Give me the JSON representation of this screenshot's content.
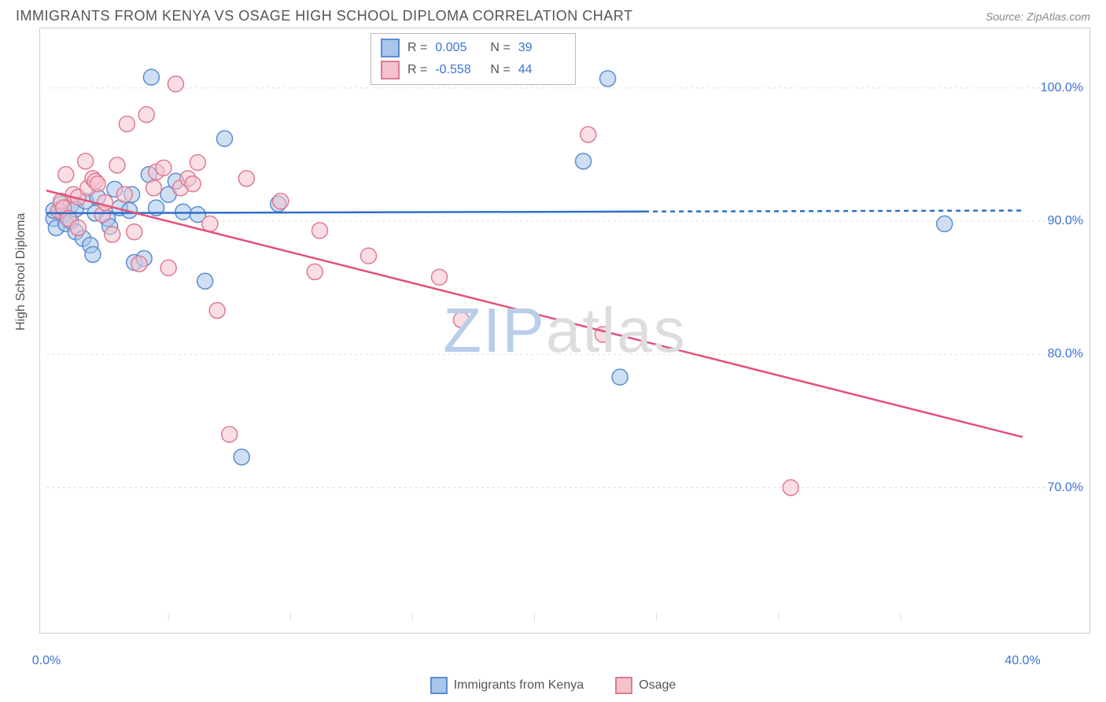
{
  "title": "IMMIGRANTS FROM KENYA VS OSAGE HIGH SCHOOL DIPLOMA CORRELATION CHART",
  "source": "Source: ZipAtlas.com",
  "y_axis_label": "High School Diploma",
  "watermark_bold": "ZIP",
  "watermark_light": "atlas",
  "chart": {
    "type": "scatter",
    "xlim": [
      0,
      40
    ],
    "ylim": [
      60,
      104
    ],
    "x_ticks": [
      0,
      40
    ],
    "x_tick_labels": [
      "0.0%",
      "40.0%"
    ],
    "y_ticks": [
      70,
      80,
      90,
      100
    ],
    "y_tick_labels": [
      "70.0%",
      "80.0%",
      "90.0%",
      "100.0%"
    ],
    "x_minor_ticks": [
      5,
      10,
      15,
      20,
      25,
      30,
      35
    ],
    "background_color": "#ffffff",
    "grid_color": "#dddddd",
    "border_color": "#cccccc",
    "marker_radius": 10,
    "marker_opacity": 0.55,
    "line_width": 2.5,
    "dash_pattern": "6 5"
  },
  "series": [
    {
      "name": "Immigrants from Kenya",
      "fill_color": "#a8c5ea",
      "stroke_color": "#5a8dd0",
      "line_color": "#2f6fc7",
      "regression": {
        "x1": 0,
        "y1": 90.6,
        "x2": 40,
        "y2": 90.8,
        "solid_until_x": 24.5
      },
      "stats_r": "0.005",
      "stats_n": "39",
      "points": [
        [
          0.3,
          90.2
        ],
        [
          0.3,
          90.8
        ],
        [
          0.4,
          89.5
        ],
        [
          0.6,
          91.3
        ],
        [
          0.7,
          90.5
        ],
        [
          0.8,
          89.8
        ],
        [
          1.0,
          91.2
        ],
        [
          1.0,
          90.0
        ],
        [
          1.2,
          89.2
        ],
        [
          1.2,
          90.9
        ],
        [
          1.5,
          88.7
        ],
        [
          1.6,
          91.5
        ],
        [
          1.8,
          88.2
        ],
        [
          1.9,
          87.5
        ],
        [
          2.0,
          90.6
        ],
        [
          2.1,
          91.8
        ],
        [
          2.5,
          90.2
        ],
        [
          2.6,
          89.6
        ],
        [
          2.8,
          92.4
        ],
        [
          3.0,
          91.0
        ],
        [
          3.4,
          90.8
        ],
        [
          3.5,
          92.0
        ],
        [
          3.6,
          86.9
        ],
        [
          4.0,
          87.2
        ],
        [
          4.2,
          93.5
        ],
        [
          4.3,
          100.8
        ],
        [
          4.5,
          91.0
        ],
        [
          5.0,
          92.0
        ],
        [
          5.3,
          93.0
        ],
        [
          5.6,
          90.7
        ],
        [
          6.2,
          90.5
        ],
        [
          6.5,
          85.5
        ],
        [
          7.3,
          96.2
        ],
        [
          8.0,
          72.3
        ],
        [
          9.5,
          91.3
        ],
        [
          23.0,
          100.7
        ],
        [
          23.5,
          78.3
        ],
        [
          22.0,
          94.5
        ],
        [
          36.8,
          89.8
        ]
      ]
    },
    {
      "name": "Osage",
      "fill_color": "#f4c2cd",
      "stroke_color": "#e07a92",
      "line_color": "#e35177",
      "regression": {
        "x1": 0,
        "y1": 92.3,
        "x2": 40,
        "y2": 73.8,
        "solid_until_x": 40
      },
      "stats_r": "-0.558",
      "stats_n": "44",
      "points": [
        [
          0.5,
          90.8
        ],
        [
          0.6,
          91.5
        ],
        [
          0.7,
          91.0
        ],
        [
          0.8,
          93.5
        ],
        [
          0.9,
          90.2
        ],
        [
          1.1,
          92.0
        ],
        [
          1.3,
          91.8
        ],
        [
          1.3,
          89.5
        ],
        [
          1.6,
          94.5
        ],
        [
          1.7,
          92.5
        ],
        [
          1.9,
          93.2
        ],
        [
          2.0,
          93.0
        ],
        [
          2.1,
          92.8
        ],
        [
          2.3,
          90.5
        ],
        [
          2.4,
          91.4
        ],
        [
          2.7,
          89.0
        ],
        [
          2.9,
          94.2
        ],
        [
          3.2,
          92.0
        ],
        [
          3.3,
          97.3
        ],
        [
          3.6,
          89.2
        ],
        [
          3.8,
          86.8
        ],
        [
          4.1,
          98.0
        ],
        [
          4.4,
          92.5
        ],
        [
          4.5,
          93.7
        ],
        [
          4.8,
          94.0
        ],
        [
          5.0,
          86.5
        ],
        [
          5.3,
          100.3
        ],
        [
          5.5,
          92.5
        ],
        [
          5.8,
          93.2
        ],
        [
          6.0,
          92.8
        ],
        [
          6.2,
          94.4
        ],
        [
          6.7,
          89.8
        ],
        [
          7.0,
          83.3
        ],
        [
          7.5,
          74.0
        ],
        [
          8.2,
          93.2
        ],
        [
          9.6,
          91.5
        ],
        [
          11.0,
          86.2
        ],
        [
          11.2,
          89.3
        ],
        [
          13.2,
          87.4
        ],
        [
          16.1,
          85.8
        ],
        [
          17.0,
          82.6
        ],
        [
          22.2,
          96.5
        ],
        [
          22.8,
          81.5
        ],
        [
          30.5,
          70.0
        ]
      ]
    }
  ],
  "stats_box": {
    "r_label": "R =",
    "n_label": "N ="
  },
  "legend": {
    "series1": "Immigrants from Kenya",
    "series2": "Osage"
  }
}
